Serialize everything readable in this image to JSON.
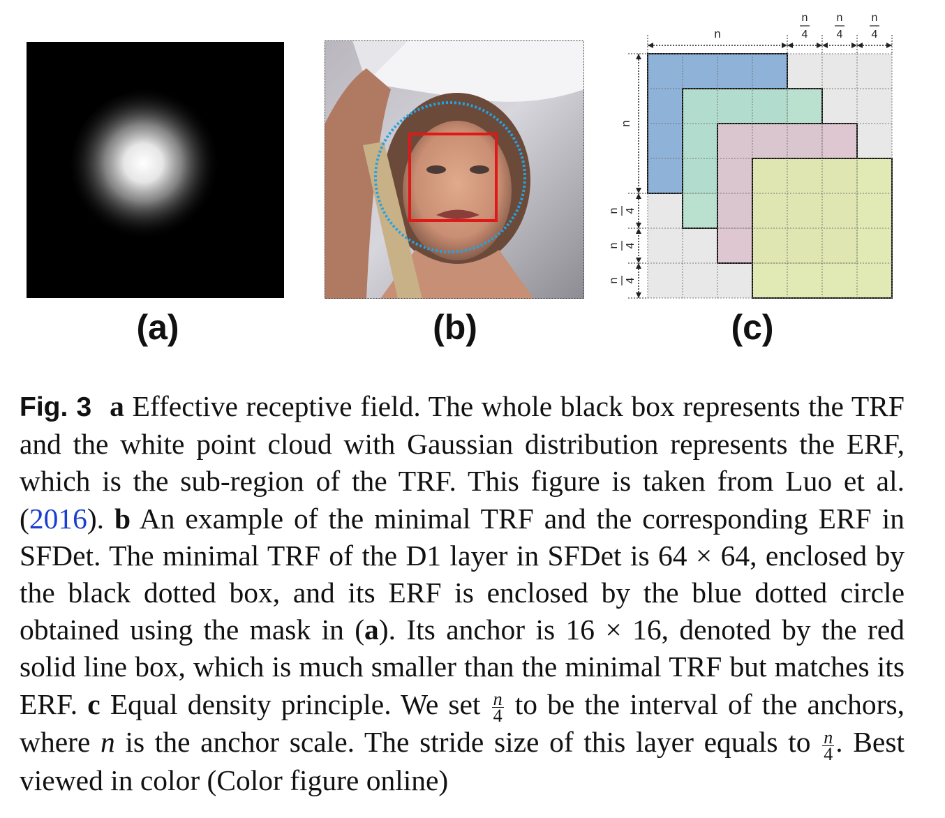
{
  "panels": {
    "a": {
      "label": "(a)"
    },
    "b": {
      "label": "(b)"
    },
    "c": {
      "label": "(c)",
      "top_label_n": "n",
      "frac_num": "n",
      "frac_den": "4",
      "side_label_n": "n",
      "colors": {
        "blue": "#8fb2d8",
        "green": "#b5e0cc",
        "pink": "#dcc3ce",
        "yellow": "#dfe8af",
        "grid": "#e8e8e8"
      }
    }
  },
  "caption": {
    "fig_label": "Fig. 3",
    "a_letter": "a",
    "a_text": " Effective receptive field. The whole black box represents the TRF and the white point cloud with Gaussian distribution represents the ERF, which is the sub-region of the TRF. This figure is taken from Luo et al. (",
    "citation": "2016",
    "after_cite": "). ",
    "b_letter": "b",
    "b_text": " An example of the minimal TRF and the corresponding ERF in SFDet. The minimal TRF of the D1 layer in SFDet is 64 × 64, enclosed by the black dotted box, and its ERF is enclosed by the blue dotted circle obtained using the mask in (",
    "ref_a": "a",
    "b_text2": "). Its anchor is 16 × 16, denoted by the red solid line box, which is much smaller than the minimal TRF but matches its ERF. ",
    "c_letter": "c",
    "c_text": " Equal density principle. We set ",
    "frac_num": "n",
    "frac_den": "4",
    "c_text2": " to be the interval of the anchors, where ",
    "n_italic": "n",
    "c_text3": " is the anchor scale. The stride size of this layer equals to ",
    "c_text4": ". Best viewed in color (Color figure online)"
  }
}
